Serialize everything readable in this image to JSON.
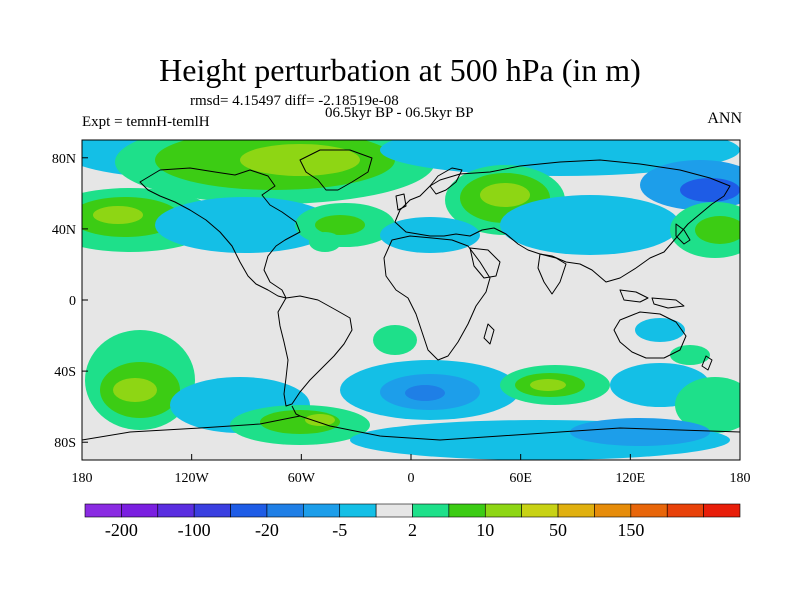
{
  "title": "Height perturbation at 500 hPa (in m)",
  "rmsd_line": "rmsd= 4.15497 diff= -2.18519e-08",
  "experiment": "Expt = temnH-temlH",
  "period": "06.5kyr BP - 06.5kyr BP",
  "season": "ANN",
  "map": {
    "projection": "cylindrical-equidistant",
    "lon_range": [
      -180,
      180
    ],
    "lat_range": [
      -90,
      90
    ],
    "x_ticks": [
      {
        "lon": -180,
        "label": "180"
      },
      {
        "lon": -120,
        "label": "120W"
      },
      {
        "lon": -60,
        "label": "60W"
      },
      {
        "lon": 0,
        "label": "0"
      },
      {
        "lon": 60,
        "label": "60E"
      },
      {
        "lon": 120,
        "label": "120E"
      },
      {
        "lon": 180,
        "label": "180"
      }
    ],
    "y_ticks": [
      {
        "lat": 80,
        "label": "80N"
      },
      {
        "lat": 40,
        "label": "40N"
      },
      {
        "lat": 0,
        "label": "0"
      },
      {
        "lat": -40,
        "label": "40S"
      },
      {
        "lat": -80,
        "label": "80S"
      }
    ],
    "background_color": "#e6e6e6",
    "coastline_color": "#000000"
  },
  "colorbar": {
    "colors": [
      "#8a2be2",
      "#7a1fe0",
      "#5a2ee0",
      "#3a3fe0",
      "#1e5ce6",
      "#1f7fe6",
      "#1d9eea",
      "#14bfe6",
      "#e6e6e6",
      "#1ee08a",
      "#3ccc14",
      "#8ed614",
      "#c8d214",
      "#e0b00f",
      "#e68c0a",
      "#e8660a",
      "#e8420a",
      "#e81e0a"
    ],
    "labels": [
      {
        "text": "-200",
        "index": 1
      },
      {
        "text": "-100",
        "index": 3
      },
      {
        "text": "-20",
        "index": 5
      },
      {
        "text": "-5",
        "index": 7
      },
      {
        "text": "2",
        "index": 9
      },
      {
        "text": "10",
        "index": 11
      },
      {
        "text": "50",
        "index": 13
      },
      {
        "text": "150",
        "index": 15
      }
    ]
  }
}
